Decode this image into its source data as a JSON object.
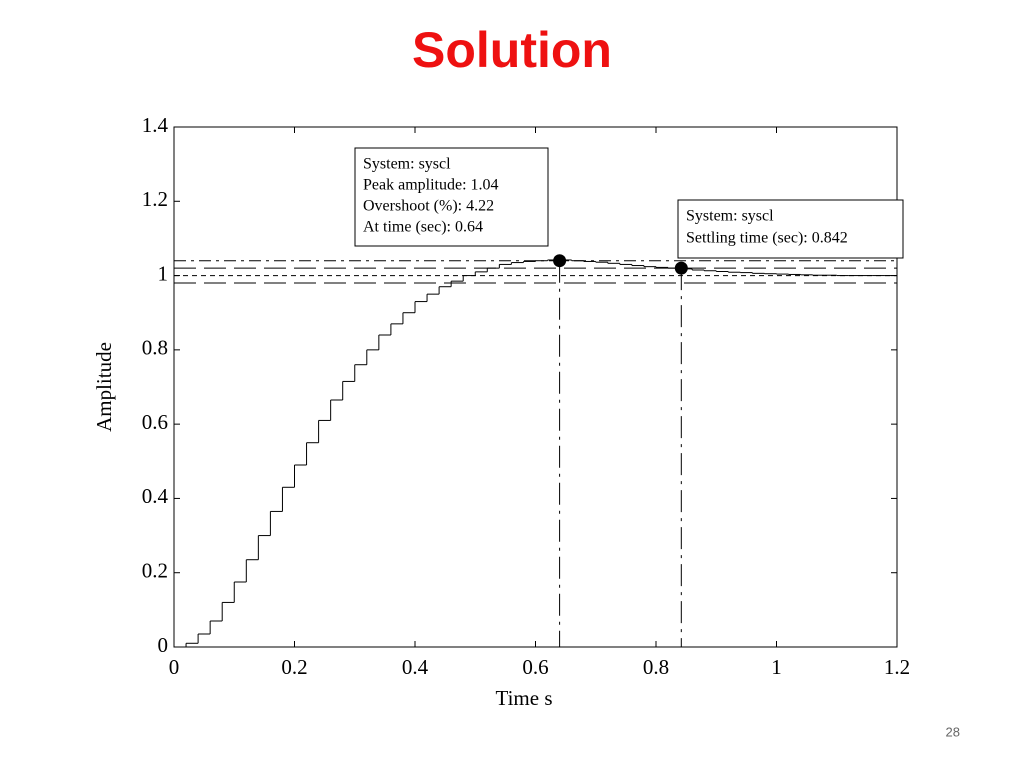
{
  "chart_data": {
    "type": "step",
    "title": "Solution",
    "xlabel": "Time s",
    "ylabel": "Amplitude",
    "x": [
      0,
      0.02,
      0.04,
      0.06,
      0.08,
      0.1,
      0.12,
      0.14,
      0.16,
      0.18,
      0.2,
      0.22,
      0.24,
      0.26,
      0.28,
      0.3,
      0.32,
      0.34,
      0.36,
      0.38,
      0.4,
      0.42,
      0.44,
      0.46,
      0.48,
      0.5,
      0.52,
      0.54,
      0.56,
      0.58,
      0.6,
      0.62,
      0.64,
      0.66,
      0.68,
      0.7,
      0.72,
      0.74,
      0.76,
      0.78,
      0.8,
      0.82,
      0.84,
      0.86,
      0.88,
      0.9,
      0.92,
      0.94,
      0.96,
      0.98,
      1,
      1.02,
      1.04,
      1.06,
      1.08,
      1.1,
      1.12,
      1.14,
      1.16,
      1.18
    ],
    "values": [
      0,
      0.01,
      0.035,
      0.07,
      0.12,
      0.175,
      0.235,
      0.3,
      0.365,
      0.43,
      0.49,
      0.55,
      0.61,
      0.665,
      0.715,
      0.76,
      0.8,
      0.84,
      0.87,
      0.9,
      0.93,
      0.95,
      0.97,
      0.985,
      1.0,
      1.01,
      1.02,
      1.03,
      1.035,
      1.038,
      1.04,
      1.042,
      1.042,
      1.04,
      1.038,
      1.036,
      1.033,
      1.03,
      1.027,
      1.024,
      1.022,
      1.02,
      1.018,
      1.015,
      1.013,
      1.011,
      1.009,
      1.008,
      1.006,
      1.005,
      1.004,
      1.003,
      1.002,
      1.001,
      1.001,
      1.0,
      1.0,
      1.0,
      1.0,
      1.0
    ],
    "color": "#000000",
    "xlim": [
      0,
      1.2
    ],
    "xticks": [
      0,
      0.2,
      0.4,
      0.6,
      0.8,
      1,
      1.2
    ],
    "ylim": [
      0,
      1.4
    ],
    "yticks": [
      0,
      0.2,
      0.4,
      0.6,
      0.8,
      1,
      1.2,
      1.4
    ],
    "grid": false,
    "hlines": [
      1.04,
      1.02,
      1,
      0.98
    ],
    "markers": [
      {
        "x": 0.64,
        "y": 1.04
      },
      {
        "x": 0.842,
        "y": 1.02
      }
    ],
    "annotations": [
      {
        "lines": [
          "System: syscl",
          "Peak amplitude: 1.04",
          "Overshoot (%): 4.22",
          "At time (sec): 0.64"
        ]
      },
      {
        "lines": [
          "System: syscl",
          "Settling time (sec): 0.842"
        ]
      }
    ]
  },
  "slide_number": 28
}
